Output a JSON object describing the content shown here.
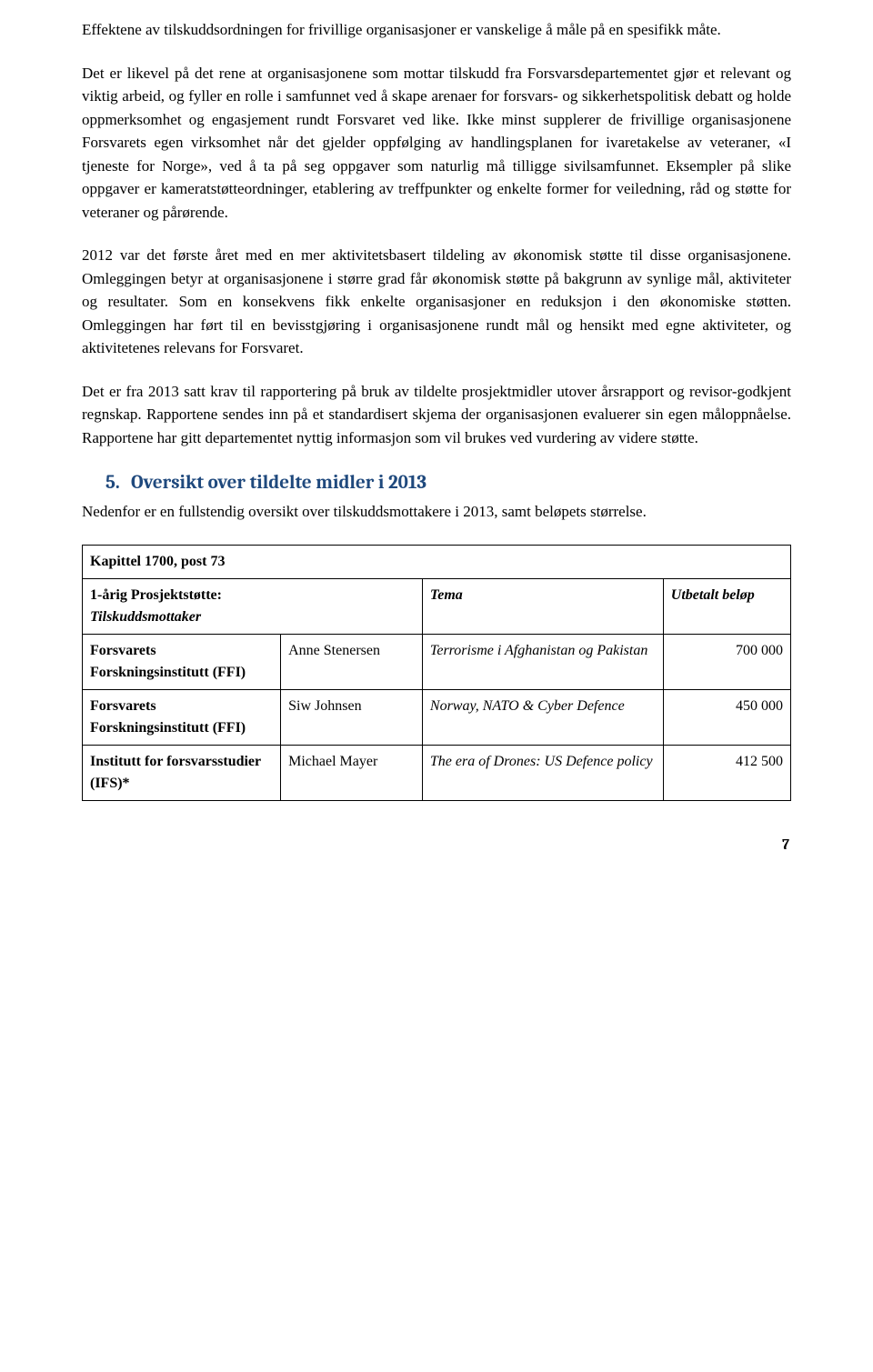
{
  "paragraphs": {
    "p1": "Effektene av tilskuddsordningen for frivillige organisasjoner er vanskelige å måle på en spesifikk måte.",
    "p2": "Det er likevel på det rene at organisasjonene som mottar tilskudd fra Forsvarsdepartementet gjør et relevant og viktig arbeid, og fyller en rolle i samfunnet ved å skape arenaer for forsvars- og sikkerhetspolitisk debatt og holde oppmerksomhet og engasjement rundt Forsvaret ved like. Ikke minst supplerer de frivillige organisasjonene Forsvarets egen virksomhet når det gjelder oppfølging av handlingsplanen for ivaretakelse av veteraner, «I tjeneste for Norge», ved å ta på seg oppgaver som naturlig må tilligge sivilsamfunnet. Eksempler på slike oppgaver er kameratstøtteordninger, etablering av treffpunkter og enkelte former for veiledning, råd og støtte for veteraner og pårørende.",
    "p3": "2012 var det første året med en mer aktivitetsbasert tildeling av økonomisk støtte til disse organisasjonene. Omleggingen betyr at organisasjonene i større grad får økonomisk støtte på bakgrunn av synlige mål, aktiviteter og resultater. Som en konsekvens fikk enkelte organisasjoner en reduksjon i den økonomiske støtten. Omleggingen har ført til en bevisstgjøring i organisasjonene rundt mål og hensikt med egne aktiviteter, og aktivitetenes relevans for Forsvaret.",
    "p4": "Det er fra 2013 satt krav til rapportering på bruk av tildelte prosjektmidler utover årsrapport og revisor-godkjent regnskap. Rapportene sendes inn på et standardisert skjema der organisasjonen evaluerer sin egen måloppnåelse. Rapportene har gitt departementet nyttig informasjon som vil brukes ved vurdering av videre støtte."
  },
  "section": {
    "number": "5.",
    "title": "Oversikt over tildelte midler i 2013",
    "intro": "Nedenfor er en fullstendig oversikt over tilskuddsmottakere i 2013, samt beløpets størrelse.",
    "color": "#1f497d"
  },
  "table": {
    "caption": "Kapittel 1700, post 73",
    "sub_heading_bold": "1-årig Prosjektstøtte:",
    "headers": {
      "recipient": "Tilskuddsmottaker",
      "topic": "Tema",
      "amount": "Utbetalt beløp"
    },
    "rows": [
      {
        "recipient": "Forsvarets Forskningsinstitutt (FFI)",
        "person": "Anne Stenersen",
        "topic": "Terrorisme i Afghanistan og Pakistan",
        "amount": "700 000"
      },
      {
        "recipient": "Forsvarets Forskningsinstitutt (FFI)",
        "person": "Siw Johnsen",
        "topic": "Norway, NATO & Cyber Defence",
        "amount": "450 000"
      },
      {
        "recipient": "Institutt for forsvarsstudier (IFS)*",
        "person": "Michael Mayer",
        "topic": "The era of Drones: US Defence policy",
        "amount": "412 500"
      }
    ]
  },
  "page_number": "7"
}
